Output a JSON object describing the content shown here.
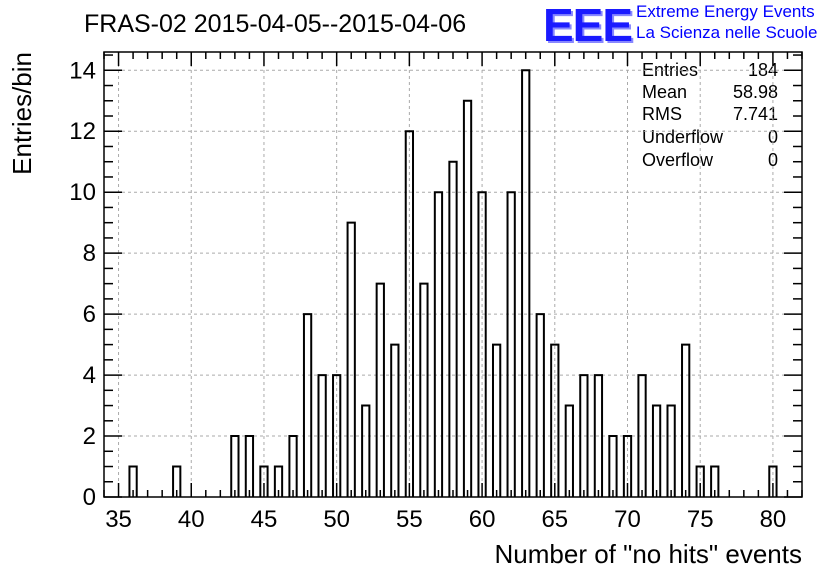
{
  "header": {
    "title": "FRAS-02 2015-04-05--2015-04-06",
    "logo_text": "EEE",
    "logo_line1": "Extreme Energy Events",
    "logo_line2": "La Scienza nelle Scuole"
  },
  "stats": {
    "entries_label": "Entries",
    "entries": "184",
    "mean_label": "Mean",
    "mean": "58.98",
    "rms_label": "RMS",
    "rms": "7.741",
    "underflow_label": "Underflow",
    "underflow": "0",
    "overflow_label": "Overflow",
    "overflow": "0"
  },
  "chart_data": {
    "type": "bar",
    "title": "FRAS-02 2015-04-05--2015-04-06",
    "xlabel": "Number of \"no hits\" events",
    "ylabel": "Entries/bin",
    "xlim": [
      34,
      82
    ],
    "ylim": [
      0,
      14.6
    ],
    "xticks": [
      35,
      40,
      45,
      50,
      55,
      60,
      65,
      70,
      75,
      80
    ],
    "yticks": [
      0,
      2,
      4,
      6,
      8,
      10,
      12,
      14
    ],
    "grid": true,
    "bins": [
      {
        "x": 36,
        "value": 1
      },
      {
        "x": 39,
        "value": 1
      },
      {
        "x": 43,
        "value": 2
      },
      {
        "x": 44,
        "value": 2
      },
      {
        "x": 45,
        "value": 1
      },
      {
        "x": 46,
        "value": 1
      },
      {
        "x": 47,
        "value": 2
      },
      {
        "x": 48,
        "value": 6
      },
      {
        "x": 49,
        "value": 4
      },
      {
        "x": 50,
        "value": 4
      },
      {
        "x": 51,
        "value": 9
      },
      {
        "x": 52,
        "value": 3
      },
      {
        "x": 53,
        "value": 7
      },
      {
        "x": 54,
        "value": 5
      },
      {
        "x": 55,
        "value": 12
      },
      {
        "x": 56,
        "value": 7
      },
      {
        "x": 57,
        "value": 10
      },
      {
        "x": 58,
        "value": 11
      },
      {
        "x": 59,
        "value": 13
      },
      {
        "x": 60,
        "value": 10
      },
      {
        "x": 61,
        "value": 5
      },
      {
        "x": 62,
        "value": 10
      },
      {
        "x": 63,
        "value": 14
      },
      {
        "x": 64,
        "value": 6
      },
      {
        "x": 65,
        "value": 5
      },
      {
        "x": 66,
        "value": 3
      },
      {
        "x": 67,
        "value": 4
      },
      {
        "x": 68,
        "value": 4
      },
      {
        "x": 69,
        "value": 2
      },
      {
        "x": 70,
        "value": 2
      },
      {
        "x": 71,
        "value": 4
      },
      {
        "x": 72,
        "value": 3
      },
      {
        "x": 73,
        "value": 3
      },
      {
        "x": 74,
        "value": 5
      },
      {
        "x": 75,
        "value": 1
      },
      {
        "x": 76,
        "value": 1
      },
      {
        "x": 80,
        "value": 1
      }
    ]
  }
}
